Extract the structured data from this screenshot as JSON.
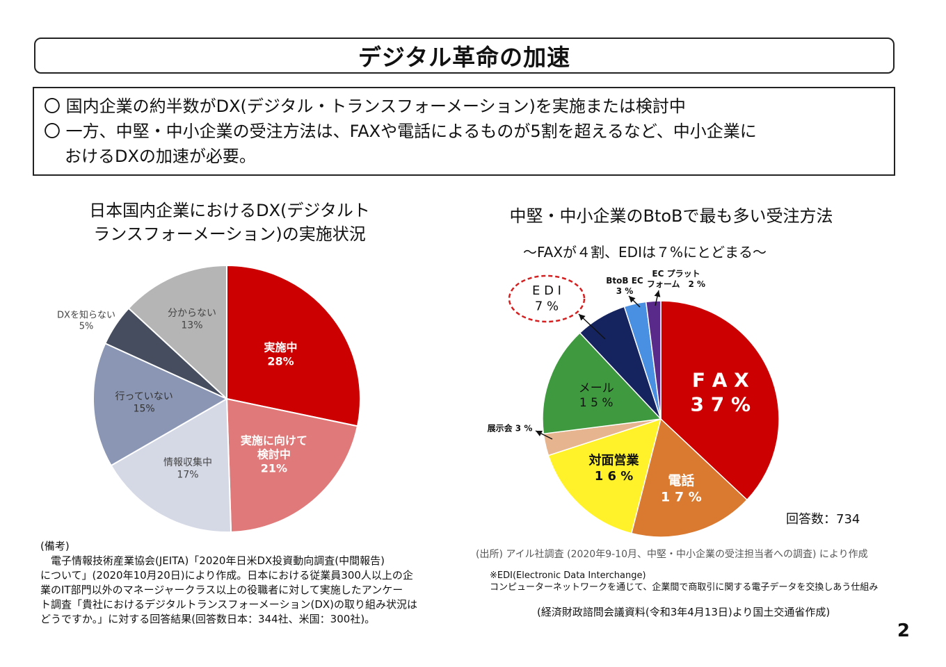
{
  "title": "デジタル革命の加速",
  "summary": {
    "line1": "〇 国内企業の約半数がDX(デジタル・トランスフォーメーション)を実施または検討中",
    "line2": "〇 一方、中堅・中小企業の受注方法は、FAXや電話によるものが5割を超えるなど、中小企業に",
    "line3": "おけるDXの加速が必要。"
  },
  "left_chart_title": {
    "line1": "日本国内企業におけるDX(デジタルト",
    "line2": "ランスフォーメーション)の実施状況"
  },
  "right_chart_title": "中堅・中小企業のBtoBで最も多い受注方法",
  "right_chart_subtitle": "～FAXが４割、EDIは７%にとどまる～",
  "chart_data": [
    {
      "type": "pie",
      "title": "日本国内企業におけるDX(デジタルトランスフォーメーション)の実施状況",
      "slices": [
        {
          "label": "実施中",
          "value": 28,
          "value_label": "28%",
          "color": "#cc0000"
        },
        {
          "label": "実施に向けて検討中",
          "value": 21,
          "value_label": "21%",
          "color": "#e07a7a"
        },
        {
          "label": "情報収集中",
          "value": 17,
          "value_label": "17%",
          "color": "#d5d9e6"
        },
        {
          "label": "行っていない",
          "value": 15,
          "value_label": "15%",
          "color": "#8a96b3"
        },
        {
          "label": "DXを知らない",
          "value": 5,
          "value_label": "5%",
          "color": "#454d5f"
        },
        {
          "label": "分からない",
          "value": 13,
          "value_label": "13%",
          "color": "#b5b5b5"
        }
      ],
      "display": {
        "実施中": [
          "実施中",
          "28%"
        ],
        "実施に向けて検討中": [
          "実施に向けて",
          "検討中",
          "21%"
        ],
        "情報収集中": [
          "情報収集中",
          "17%"
        ],
        "行っていない": [
          "行っていない",
          "15%"
        ],
        "DXを知らない": [
          "DXを知らない",
          "5%"
        ],
        "分からない": [
          "分からない",
          "13%"
        ]
      }
    },
    {
      "type": "pie",
      "title": "中堅・中小企業のBtoBで最も多い受注方法",
      "slices": [
        {
          "label": "FAX",
          "value": 37,
          "value_label": "37%",
          "color": "#cc0000"
        },
        {
          "label": "電話",
          "value": 17,
          "value_label": "17%",
          "color": "#d97a30"
        },
        {
          "label": "対面営業",
          "value": 16,
          "value_label": "16%",
          "color": "#fff22a"
        },
        {
          "label": "展示会",
          "value": 3,
          "value_label": "3%",
          "color": "#e6b48f"
        },
        {
          "label": "メール",
          "value": 15,
          "value_label": "15%",
          "color": "#3f9a3f"
        },
        {
          "label": "EDI",
          "value": 7,
          "value_label": "7%",
          "color": "#15245e"
        },
        {
          "label": "BtoB EC",
          "value": 3,
          "value_label": "3%",
          "color": "#4a90e2"
        },
        {
          "label": "EC プラットフォーム",
          "value": 2,
          "value_label": "2%",
          "color": "#5a2a8a"
        }
      ],
      "display": {
        "FAX": [
          "F A X",
          "3 7 %"
        ],
        "電話": [
          "電話",
          "1 7 %"
        ],
        "対面営業": [
          "対面営業",
          "1 6 %"
        ],
        "展示会": [
          "展示会 3 %"
        ],
        "メール": [
          "メール",
          "1 5 %"
        ],
        "EDI": [
          "E D I",
          "7 %"
        ],
        "BtoB EC": [
          "BtoB EC",
          "3 %"
        ],
        "EC プラットフォーム": [
          "EC プラット",
          "フォーム　2 %"
        ]
      },
      "respondents": "回答数：734"
    }
  ],
  "notes": {
    "heading": "(備考)",
    "lines": [
      "　電子情報技術産業協会(JEITA)「2020年日米DX投資動向調査(中間報告)",
      "について」(2020年10月20日)により作成。日本における従業員300人以上の企",
      "業のIT部門以外のマネージャークラス以上の役職者に対して実施したアンケー",
      "ト調査「貴社におけるデジタルトランスフォーメーション(DX)の取り組み状況は",
      "どうですか。」に対する回答結果(回答数日本：344社、米国：300社)。"
    ]
  },
  "source": "(出所) アイル社調査 (2020年9-10月、中堅・中小企業の受注担当者への調査) により作成",
  "edi_note": {
    "line1": "※EDI(Electronic Data Interchange)",
    "line2": "コンピューターネットワークを通じて、企業間で商取引に関する電子データを交換しあう仕組み"
  },
  "credit": "(経済財政諮問会議資料(令和3年4月13日)より国土交通省作成)",
  "page_number": "2"
}
